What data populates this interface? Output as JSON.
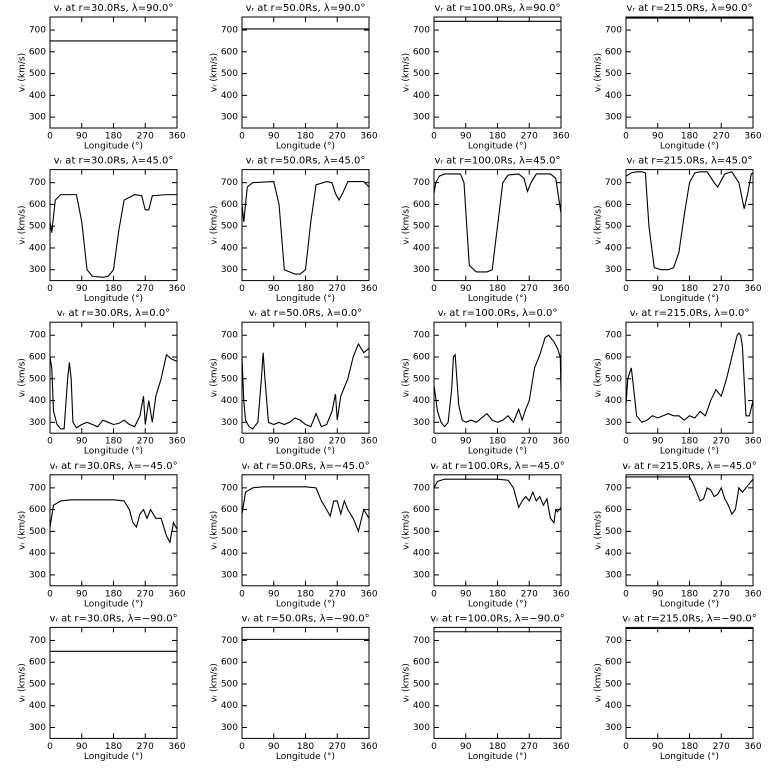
{
  "chart_data": [
    {
      "type": "line",
      "title": "vᵣ at r=30.0Rs, λ=90.0°",
      "xlabel": "Longitude (°)",
      "ylabel": "vᵣ (km/s)",
      "x": [
        0,
        360
      ],
      "values": [
        650,
        650
      ],
      "xlim": [
        0,
        360
      ],
      "ylim": [
        250,
        760
      ],
      "xticks": [
        0,
        90,
        180,
        270,
        360
      ],
      "yticks": [
        300,
        400,
        500,
        600,
        700
      ],
      "color": "#000000"
    },
    {
      "type": "line",
      "title": "vᵣ at r=50.0Rs, λ=90.0°",
      "xlabel": "Longitude (°)",
      "ylabel": "vᵣ (km/s)",
      "x": [
        0,
        360
      ],
      "values": [
        705,
        705
      ],
      "xlim": [
        0,
        360
      ],
      "ylim": [
        250,
        760
      ],
      "xticks": [
        0,
        90,
        180,
        270,
        360
      ],
      "yticks": [
        300,
        400,
        500,
        600,
        700
      ],
      "color": "#000000"
    },
    {
      "type": "line",
      "title": "vᵣ at r=100.0Rs, λ=90.0°",
      "xlabel": "Longitude (°)",
      "ylabel": "vᵣ (km/s)",
      "x": [
        0,
        360
      ],
      "values": [
        740,
        740
      ],
      "xlim": [
        0,
        360
      ],
      "ylim": [
        250,
        760
      ],
      "xticks": [
        0,
        90,
        180,
        270,
        360
      ],
      "yticks": [
        300,
        400,
        500,
        600,
        700
      ],
      "color": "#000000"
    },
    {
      "type": "line",
      "title": "vᵣ at r=215.0Rs, λ=90.0°",
      "xlabel": "Longitude (°)",
      "ylabel": "vᵣ (km/s)",
      "x": [
        0,
        360
      ],
      "values": [
        755,
        755
      ],
      "xlim": [
        0,
        360
      ],
      "ylim": [
        250,
        760
      ],
      "xticks": [
        0,
        90,
        180,
        270,
        360
      ],
      "yticks": [
        300,
        400,
        500,
        600,
        700
      ],
      "color": "#000000"
    },
    {
      "type": "line",
      "title": "vᵣ at r=30.0Rs, λ=45.0°",
      "xlabel": "Longitude (°)",
      "ylabel": "vᵣ (km/s)",
      "x": [
        0,
        5,
        15,
        30,
        75,
        90,
        105,
        120,
        150,
        165,
        180,
        195,
        210,
        240,
        260,
        270,
        280,
        290,
        330,
        360
      ],
      "values": [
        520,
        470,
        620,
        645,
        645,
        520,
        300,
        270,
        265,
        270,
        300,
        480,
        620,
        645,
        640,
        575,
        575,
        640,
        645,
        645
      ],
      "xlim": [
        0,
        360
      ],
      "ylim": [
        250,
        760
      ],
      "xticks": [
        0,
        90,
        180,
        270,
        360
      ],
      "yticks": [
        300,
        400,
        500,
        600,
        700
      ],
      "color": "#000000"
    },
    {
      "type": "line",
      "title": "vᵣ at r=50.0Rs, λ=45.0°",
      "xlabel": "Longitude (°)",
      "ylabel": "vᵣ (km/s)",
      "x": [
        0,
        5,
        15,
        30,
        90,
        105,
        120,
        150,
        165,
        180,
        195,
        210,
        240,
        255,
        265,
        275,
        285,
        300,
        345,
        360
      ],
      "values": [
        600,
        520,
        680,
        700,
        705,
        600,
        300,
        280,
        280,
        300,
        520,
        690,
        705,
        700,
        650,
        620,
        650,
        705,
        705,
        680
      ],
      "xlim": [
        0,
        360
      ],
      "ylim": [
        250,
        760
      ],
      "xticks": [
        0,
        90,
        180,
        270,
        360
      ],
      "yticks": [
        300,
        400,
        500,
        600,
        700
      ],
      "color": "#000000"
    },
    {
      "type": "line",
      "title": "vᵣ at r=100.0Rs, λ=45.0°",
      "xlabel": "Longitude (°)",
      "ylabel": "vᵣ (km/s)",
      "x": [
        0,
        5,
        15,
        30,
        75,
        85,
        100,
        120,
        150,
        165,
        180,
        195,
        210,
        240,
        255,
        265,
        275,
        290,
        330,
        345,
        360
      ],
      "values": [
        650,
        700,
        730,
        740,
        740,
        700,
        320,
        290,
        290,
        300,
        500,
        700,
        735,
        740,
        720,
        660,
        700,
        740,
        740,
        720,
        560
      ],
      "xlim": [
        0,
        360
      ],
      "ylim": [
        250,
        760
      ],
      "xticks": [
        0,
        90,
        180,
        270,
        360
      ],
      "yticks": [
        300,
        400,
        500,
        600,
        700
      ],
      "color": "#000000"
    },
    {
      "type": "line",
      "title": "vᵣ at r=215.0Rs, λ=45.0°",
      "xlabel": "Longitude (°)",
      "ylabel": "vᵣ (km/s)",
      "x": [
        0,
        15,
        30,
        45,
        55,
        65,
        80,
        100,
        120,
        135,
        150,
        165,
        180,
        195,
        210,
        230,
        250,
        260,
        280,
        300,
        320,
        335,
        345,
        355,
        360
      ],
      "values": [
        730,
        745,
        750,
        750,
        745,
        500,
        310,
        300,
        300,
        310,
        380,
        550,
        700,
        745,
        750,
        750,
        700,
        680,
        740,
        750,
        700,
        580,
        650,
        740,
        745
      ],
      "xlim": [
        0,
        360
      ],
      "ylim": [
        250,
        760
      ],
      "xticks": [
        0,
        90,
        180,
        270,
        360
      ],
      "yticks": [
        300,
        400,
        500,
        600,
        700
      ],
      "color": "#000000"
    },
    {
      "type": "line",
      "title": "vᵣ at r=30.0Rs, λ=0.0°",
      "xlabel": "Longitude (°)",
      "ylabel": "vᵣ (km/s)",
      "x": [
        0,
        5,
        10,
        20,
        30,
        40,
        50,
        55,
        60,
        65,
        75,
        90,
        105,
        120,
        135,
        150,
        165,
        180,
        195,
        210,
        225,
        240,
        255,
        265,
        270,
        280,
        290,
        300,
        315,
        330,
        345,
        360
      ],
      "values": [
        600,
        550,
        350,
        290,
        270,
        270,
        500,
        575,
        500,
        300,
        275,
        290,
        300,
        290,
        280,
        310,
        300,
        290,
        295,
        310,
        290,
        280,
        330,
        420,
        290,
        400,
        300,
        420,
        500,
        610,
        590,
        580
      ],
      "xlim": [
        0,
        360
      ],
      "ylim": [
        250,
        760
      ],
      "xticks": [
        0,
        90,
        180,
        270,
        360
      ],
      "yticks": [
        300,
        400,
        500,
        600,
        700
      ],
      "color": "#000000"
    },
    {
      "type": "line",
      "title": "vᵣ at r=50.0Rs, λ=0.0°",
      "xlabel": "Longitude (°)",
      "ylabel": "vᵣ (km/s)",
      "x": [
        0,
        5,
        10,
        20,
        30,
        45,
        55,
        60,
        65,
        75,
        90,
        105,
        120,
        135,
        150,
        165,
        180,
        195,
        210,
        225,
        240,
        255,
        265,
        270,
        280,
        300,
        315,
        330,
        345,
        360
      ],
      "values": [
        600,
        400,
        310,
        280,
        270,
        300,
        500,
        620,
        500,
        300,
        290,
        300,
        290,
        300,
        320,
        310,
        290,
        280,
        340,
        280,
        290,
        350,
        430,
        310,
        420,
        500,
        600,
        660,
        620,
        640
      ],
      "xlim": [
        0,
        360
      ],
      "ylim": [
        250,
        760
      ],
      "xticks": [
        0,
        90,
        180,
        270,
        360
      ],
      "yticks": [
        300,
        400,
        500,
        600,
        700
      ],
      "color": "#000000"
    },
    {
      "type": "line",
      "title": "vᵣ at r=100.0Rs, λ=0.0°",
      "xlabel": "Longitude (°)",
      "ylabel": "vᵣ (km/s)",
      "x": [
        0,
        10,
        20,
        30,
        40,
        50,
        55,
        60,
        70,
        80,
        90,
        105,
        120,
        135,
        150,
        165,
        180,
        195,
        210,
        225,
        240,
        250,
        260,
        270,
        285,
        300,
        315,
        325,
        340,
        350,
        358,
        360
      ],
      "values": [
        470,
        350,
        300,
        280,
        300,
        450,
        600,
        610,
        380,
        310,
        300,
        310,
        300,
        320,
        340,
        310,
        300,
        310,
        330,
        300,
        360,
        310,
        360,
        400,
        550,
        610,
        690,
        700,
        670,
        640,
        600,
        440
      ],
      "xlim": [
        0,
        360
      ],
      "ylim": [
        250,
        760
      ],
      "xticks": [
        0,
        90,
        180,
        270,
        360
      ],
      "yticks": [
        300,
        400,
        500,
        600,
        700
      ],
      "color": "#000000"
    },
    {
      "type": "line",
      "title": "vᵣ at r=215.0Rs, λ=0.0°",
      "xlabel": "Longitude (°)",
      "ylabel": "vᵣ (km/s)",
      "x": [
        0,
        5,
        15,
        20,
        30,
        45,
        60,
        75,
        90,
        105,
        120,
        135,
        150,
        165,
        180,
        195,
        210,
        225,
        240,
        255,
        270,
        285,
        300,
        315,
        320,
        325,
        330,
        340,
        350,
        360
      ],
      "values": [
        380,
        500,
        550,
        480,
        330,
        300,
        310,
        330,
        320,
        330,
        340,
        330,
        330,
        310,
        330,
        320,
        350,
        330,
        400,
        450,
        420,
        500,
        600,
        700,
        710,
        700,
        650,
        330,
        330,
        400
      ],
      "xlim": [
        0,
        360
      ],
      "ylim": [
        250,
        760
      ],
      "xticks": [
        0,
        90,
        180,
        270,
        360
      ],
      "yticks": [
        300,
        400,
        500,
        600,
        700
      ],
      "color": "#000000"
    },
    {
      "type": "line",
      "title": "vᵣ at r=30.0Rs, λ=−45.0°",
      "xlabel": "Longitude (°)",
      "ylabel": "vᵣ (km/s)",
      "x": [
        0,
        10,
        30,
        60,
        90,
        120,
        150,
        180,
        210,
        225,
        235,
        245,
        255,
        265,
        275,
        285,
        300,
        315,
        330,
        340,
        350,
        360
      ],
      "values": [
        520,
        620,
        640,
        645,
        645,
        645,
        645,
        645,
        640,
        600,
        540,
        520,
        580,
        600,
        560,
        600,
        560,
        560,
        480,
        450,
        540,
        510
      ],
      "xlim": [
        0,
        360
      ],
      "ylim": [
        250,
        760
      ],
      "xticks": [
        0,
        90,
        180,
        270,
        360
      ],
      "yticks": [
        300,
        400,
        500,
        600,
        700
      ],
      "color": "#000000"
    },
    {
      "type": "line",
      "title": "vᵣ at r=50.0Rs, λ=−45.0°",
      "xlabel": "Longitude (°)",
      "ylabel": "vᵣ (km/s)",
      "x": [
        0,
        10,
        30,
        60,
        90,
        120,
        150,
        180,
        210,
        225,
        240,
        250,
        260,
        270,
        280,
        290,
        300,
        315,
        330,
        345,
        360
      ],
      "values": [
        580,
        680,
        700,
        705,
        705,
        705,
        705,
        705,
        700,
        640,
        600,
        570,
        640,
        640,
        580,
        640,
        600,
        560,
        500,
        600,
        560
      ],
      "xlim": [
        0,
        360
      ],
      "ylim": [
        250,
        760
      ],
      "xticks": [
        0,
        90,
        180,
        270,
        360
      ],
      "yticks": [
        300,
        400,
        500,
        600,
        700
      ],
      "color": "#000000"
    },
    {
      "type": "line",
      "title": "vᵣ at r=100.0Rs, λ=−45.0°",
      "xlabel": "Longitude (°)",
      "ylabel": "vᵣ (km/s)",
      "x": [
        0,
        10,
        30,
        60,
        90,
        120,
        150,
        180,
        210,
        225,
        240,
        250,
        260,
        270,
        280,
        290,
        300,
        310,
        320,
        330,
        340,
        345,
        350,
        360
      ],
      "values": [
        700,
        730,
        740,
        740,
        740,
        740,
        740,
        740,
        735,
        700,
        610,
        640,
        660,
        640,
        680,
        640,
        660,
        620,
        650,
        560,
        540,
        600,
        590,
        610
      ],
      "xlim": [
        0,
        360
      ],
      "ylim": [
        250,
        760
      ],
      "xticks": [
        0,
        90,
        180,
        270,
        360
      ],
      "yticks": [
        300,
        400,
        500,
        600,
        700
      ],
      "color": "#000000"
    },
    {
      "type": "line",
      "title": "vᵣ at r=215.0Rs, λ=−45.0°",
      "xlabel": "Longitude (°)",
      "ylabel": "vᵣ (km/s)",
      "x": [
        0,
        30,
        60,
        90,
        120,
        150,
        180,
        190,
        200,
        210,
        220,
        230,
        240,
        250,
        260,
        270,
        280,
        290,
        300,
        310,
        320,
        330,
        345,
        360
      ],
      "values": [
        750,
        750,
        750,
        750,
        750,
        750,
        750,
        720,
        680,
        640,
        650,
        700,
        690,
        660,
        670,
        700,
        650,
        620,
        580,
        600,
        700,
        680,
        710,
        740
      ],
      "xlim": [
        0,
        360
      ],
      "ylim": [
        250,
        760
      ],
      "xticks": [
        0,
        90,
        180,
        270,
        360
      ],
      "yticks": [
        300,
        400,
        500,
        600,
        700
      ],
      "color": "#000000"
    },
    {
      "type": "line",
      "title": "vᵣ at r=30.0Rs, λ=−90.0°",
      "xlabel": "Longitude (°)",
      "ylabel": "vᵣ (km/s)",
      "x": [
        0,
        360
      ],
      "values": [
        650,
        650
      ],
      "xlim": [
        0,
        360
      ],
      "ylim": [
        250,
        760
      ],
      "xticks": [
        0,
        90,
        180,
        270,
        360
      ],
      "yticks": [
        300,
        400,
        500,
        600,
        700
      ],
      "color": "#000000"
    },
    {
      "type": "line",
      "title": "vᵣ at r=50.0Rs, λ=−90.0°",
      "xlabel": "Longitude (°)",
      "ylabel": "vᵣ (km/s)",
      "x": [
        0,
        360
      ],
      "values": [
        705,
        705
      ],
      "xlim": [
        0,
        360
      ],
      "ylim": [
        250,
        760
      ],
      "xticks": [
        0,
        90,
        180,
        270,
        360
      ],
      "yticks": [
        300,
        400,
        500,
        600,
        700
      ],
      "color": "#000000"
    },
    {
      "type": "line",
      "title": "vᵣ at r=100.0Rs, λ=−90.0°",
      "xlabel": "Longitude (°)",
      "ylabel": "vᵣ (km/s)",
      "x": [
        0,
        360
      ],
      "values": [
        740,
        740
      ],
      "xlim": [
        0,
        360
      ],
      "ylim": [
        250,
        760
      ],
      "xticks": [
        0,
        90,
        180,
        270,
        360
      ],
      "yticks": [
        300,
        400,
        500,
        600,
        700
      ],
      "color": "#000000"
    },
    {
      "type": "line",
      "title": "vᵣ at r=215.0Rs, λ=−90.0°",
      "xlabel": "Longitude (°)",
      "ylabel": "vᵣ (km/s)",
      "x": [
        0,
        360
      ],
      "values": [
        755,
        755
      ],
      "xlim": [
        0,
        360
      ],
      "ylim": [
        250,
        760
      ],
      "xticks": [
        0,
        90,
        180,
        270,
        360
      ],
      "yticks": [
        300,
        400,
        500,
        600,
        700
      ],
      "color": "#000000"
    }
  ]
}
